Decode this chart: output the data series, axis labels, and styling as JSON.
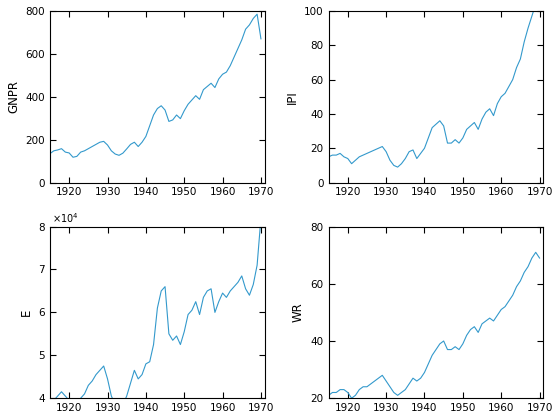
{
  "line_color": "#3399cc",
  "line_width": 0.8,
  "years": [
    1915,
    1916,
    1917,
    1918,
    1919,
    1920,
    1921,
    1922,
    1923,
    1924,
    1925,
    1926,
    1927,
    1928,
    1929,
    1930,
    1931,
    1932,
    1933,
    1934,
    1935,
    1936,
    1937,
    1938,
    1939,
    1940,
    1941,
    1942,
    1943,
    1944,
    1945,
    1946,
    1947,
    1948,
    1949,
    1950,
    1951,
    1952,
    1953,
    1954,
    1955,
    1956,
    1957,
    1958,
    1959,
    1960,
    1961,
    1962,
    1963,
    1964,
    1965,
    1966,
    1967,
    1968,
    1969,
    1970
  ],
  "GNPR": [
    135,
    148,
    152,
    158,
    142,
    138,
    118,
    122,
    142,
    148,
    158,
    168,
    178,
    188,
    192,
    175,
    148,
    133,
    127,
    137,
    157,
    178,
    188,
    168,
    188,
    215,
    265,
    315,
    345,
    358,
    338,
    285,
    292,
    315,
    298,
    335,
    365,
    385,
    405,
    388,
    433,
    448,
    463,
    443,
    483,
    505,
    515,
    545,
    585,
    625,
    665,
    715,
    735,
    765,
    785,
    670
  ],
  "IPI": [
    15,
    16,
    16,
    17,
    15,
    14,
    11,
    13,
    15,
    16,
    17,
    18,
    19,
    20,
    21,
    18,
    13,
    10,
    9,
    11,
    14,
    18,
    19,
    14,
    17,
    20,
    26,
    32,
    34,
    36,
    33,
    23,
    23,
    25,
    23,
    26,
    31,
    33,
    35,
    31,
    37,
    41,
    43,
    39,
    46,
    50,
    52,
    56,
    60,
    67,
    72,
    82,
    90,
    97,
    104,
    109
  ],
  "E": [
    38500,
    39500,
    40500,
    41500,
    40500,
    39500,
    36500,
    37500,
    40000,
    41000,
    43000,
    44000,
    45500,
    46500,
    47500,
    44500,
    40500,
    38500,
    37500,
    38500,
    40500,
    43500,
    46500,
    44500,
    45500,
    48000,
    48500,
    52500,
    61000,
    65000,
    66000,
    55000,
    53500,
    54500,
    52500,
    55500,
    59500,
    60500,
    62500,
    59500,
    63500,
    65000,
    65500,
    60000,
    62500,
    64500,
    63500,
    65000,
    66000,
    67000,
    68500,
    65500,
    64000,
    66500,
    71000,
    82000
  ],
  "WR": [
    21,
    22,
    22,
    23,
    23,
    22,
    20,
    21,
    23,
    24,
    24,
    25,
    26,
    27,
    28,
    26,
    24,
    22,
    21,
    22,
    23,
    25,
    27,
    26,
    27,
    29,
    32,
    35,
    37,
    39,
    40,
    37,
    37,
    38,
    37,
    39,
    42,
    44,
    45,
    43,
    46,
    47,
    48,
    47,
    49,
    51,
    52,
    54,
    56,
    59,
    61,
    64,
    66,
    69,
    71,
    69
  ],
  "xticks": [
    1920,
    1930,
    1940,
    1950,
    1960,
    1970
  ],
  "xlim": [
    1915,
    1971
  ],
  "GNPR_ylim": [
    0,
    800
  ],
  "GNPR_yticks": [
    0,
    200,
    400,
    600,
    800
  ],
  "IPI_ylim": [
    0,
    100
  ],
  "IPI_yticks": [
    0,
    20,
    40,
    60,
    80,
    100
  ],
  "E_ylim": [
    40000,
    80000
  ],
  "E_yticks": [
    40000,
    50000,
    60000,
    70000,
    80000
  ],
  "WR_ylim": [
    20,
    80
  ],
  "WR_yticks": [
    20,
    40,
    60,
    80
  ],
  "ylabel_GNPR": "GNPR",
  "ylabel_IPI": "IPI",
  "ylabel_E": "E",
  "ylabel_WR": "WR",
  "tick_fontsize": 7.5,
  "label_fontsize": 8.5
}
